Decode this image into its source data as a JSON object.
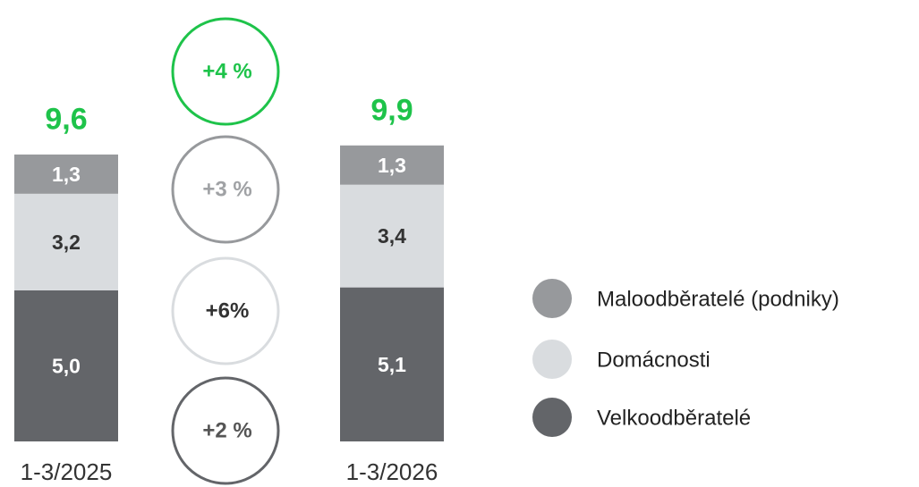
{
  "chart_data": {
    "type": "stacked_bar",
    "categories": [
      "1-3/2025",
      "1-3/2026"
    ],
    "series": [
      {
        "name": "Velkoodběratelé",
        "color": "#636569",
        "label_color": "#ffffff",
        "values": [
          5.0,
          5.1
        ],
        "value_labels": [
          "5,0",
          "5,1"
        ]
      },
      {
        "name": "Domácnosti",
        "color": "#d9dcdf",
        "label_color": "#333333",
        "values": [
          3.2,
          3.4
        ],
        "value_labels": [
          "3,2",
          "3,4"
        ]
      },
      {
        "name": "Maloodběratelé (podniky)",
        "color": "#97999c",
        "label_color": "#ffffff",
        "values": [
          1.3,
          1.3
        ],
        "value_labels": [
          "1,3",
          "1,3"
        ]
      }
    ],
    "totals": {
      "color": "#1ec34a",
      "values": [
        9.6,
        9.9
      ],
      "value_labels": [
        "9,6",
        "9,9"
      ]
    },
    "changes": [
      {
        "label": "+4 %",
        "color": "#1ec34a",
        "text_color": "#1ec34a"
      },
      {
        "label": "+3 %",
        "color": "#97999c",
        "text_color": "#a0a2a5"
      },
      {
        "label": "+6%",
        "color": "#d9dcdf",
        "text_color": "#333333"
      },
      {
        "label": "+2 %",
        "color": "#636569",
        "text_color": "#555555"
      }
    ]
  }
}
